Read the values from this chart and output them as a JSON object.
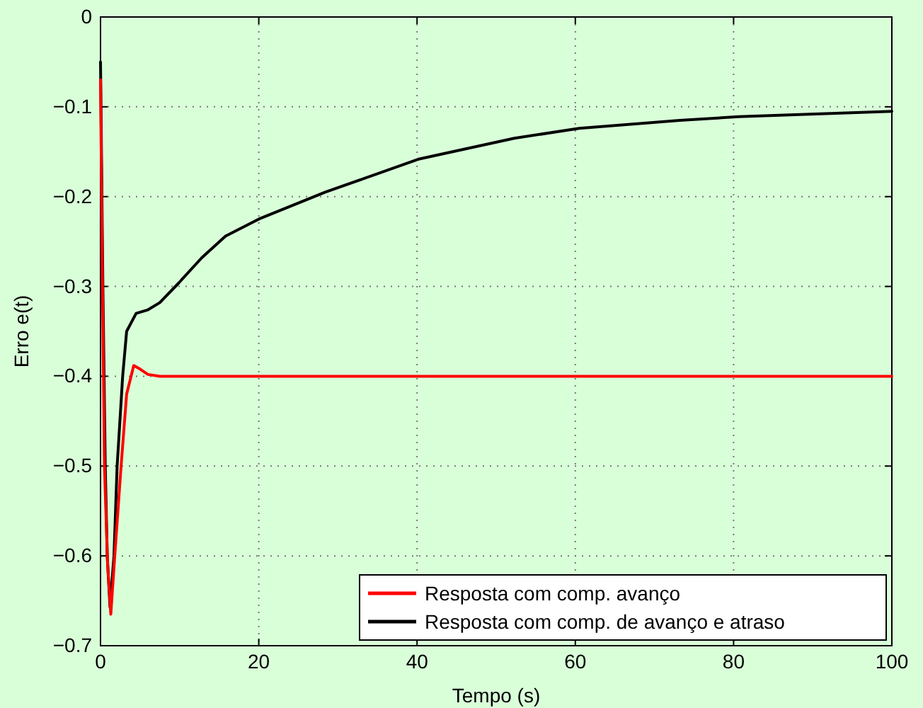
{
  "chart_data": {
    "type": "line",
    "xlabel": "Tempo (s)",
    "ylabel": "Erro e(t)",
    "xlim": [
      0,
      100
    ],
    "ylim": [
      -0.7,
      0
    ],
    "xticks": [
      0,
      20,
      40,
      60,
      80,
      100
    ],
    "yticks": [
      {
        "value": -0.7,
        "label": "−0.7"
      },
      {
        "value": -0.6,
        "label": "−0.6"
      },
      {
        "value": -0.5,
        "label": "−0.5"
      },
      {
        "value": -0.4,
        "label": "−0.4"
      },
      {
        "value": -0.3,
        "label": "−0.3"
      },
      {
        "value": -0.2,
        "label": "−0.2"
      },
      {
        "value": -0.1,
        "label": "−0.1"
      },
      0
    ],
    "grid": true,
    "legend": "bottom right",
    "line_style": "solid",
    "marker": "none",
    "series": [
      {
        "name": "Resposta com comp. avanço",
        "color": "#ff0000",
        "x": [
          0,
          0.25,
          0.5,
          0.9,
          1.3,
          1.8,
          2.6,
          3.3,
          4.2,
          5,
          6,
          7.5,
          10,
          20,
          40,
          60,
          80,
          100
        ],
        "values": [
          -0.07,
          -0.3,
          -0.5,
          -0.61,
          -0.665,
          -0.6,
          -0.5,
          -0.42,
          -0.388,
          -0.392,
          -0.398,
          -0.4,
          -0.4,
          -0.4,
          -0.4,
          -0.4,
          -0.4,
          -0.4
        ]
      },
      {
        "name": "Resposta com comp. de avanço e atraso",
        "color": "#000000",
        "x": [
          0,
          0.3,
          0.6,
          0.85,
          1.2,
          1.7,
          2.1,
          2.8,
          3.3,
          4.5,
          6,
          7.5,
          9.9,
          12.8,
          15.8,
          20,
          28.4,
          40.3,
          52.3,
          60.5,
          73.2,
          80.7,
          100
        ],
        "values": [
          -0.05,
          -0.3,
          -0.5,
          -0.6,
          -0.657,
          -0.6,
          -0.5,
          -0.4,
          -0.35,
          -0.33,
          -0.326,
          -0.318,
          -0.296,
          -0.268,
          -0.244,
          -0.225,
          -0.195,
          -0.158,
          -0.135,
          -0.124,
          -0.115,
          -0.111,
          -0.105
        ]
      }
    ]
  }
}
